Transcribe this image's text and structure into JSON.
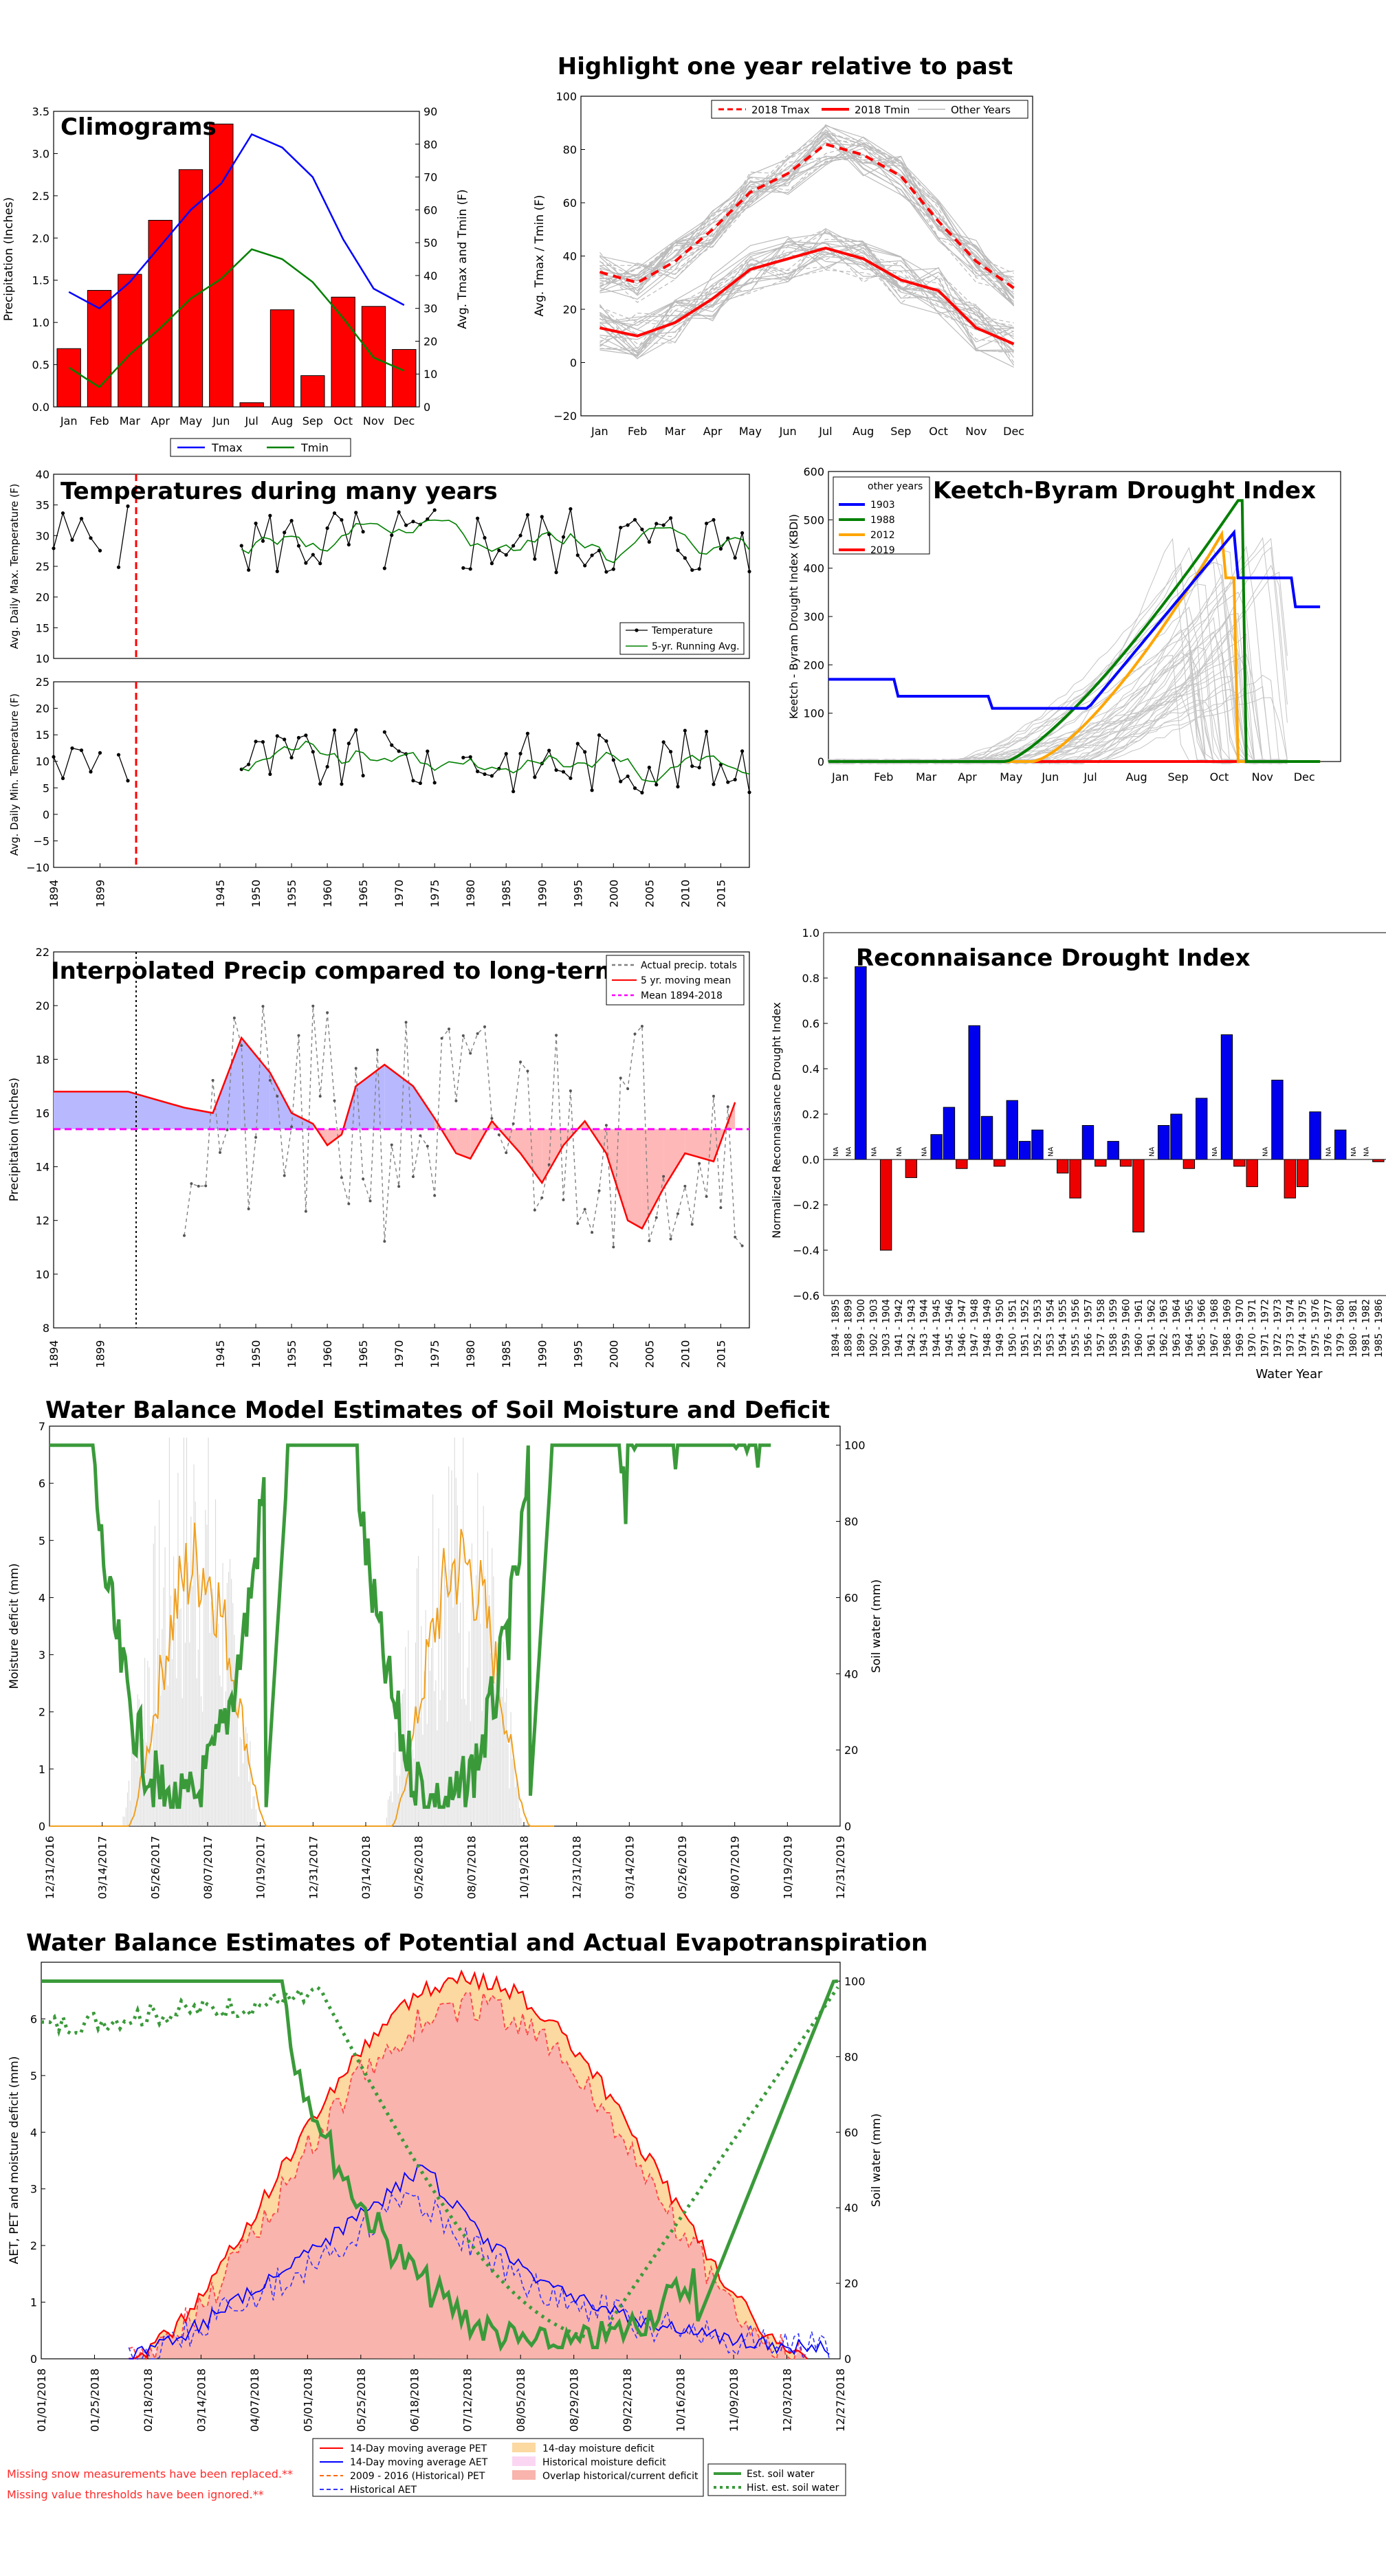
{
  "months": [
    "Jan",
    "Feb",
    "Mar",
    "Apr",
    "May",
    "Jun",
    "Jul",
    "Aug",
    "Sep",
    "Oct",
    "Nov",
    "Dec"
  ],
  "notes": [
    "Missing snow measurements have been replaced.**",
    "Missing value thresholds have been ignored.**"
  ],
  "chart_data": [
    {
      "id": "climogram",
      "type": "bar+line",
      "title": "Climograms",
      "ylabel": "Precipitation (Inches)",
      "y2label": "Avg. Tmax and Tmin (F)",
      "ylim": [
        0,
        3.5
      ],
      "y2lim": [
        0,
        90
      ],
      "yticks": [
        "0.0",
        "0.5",
        "1.0",
        "1.5",
        "2.0",
        "2.5",
        "3.0",
        "3.5"
      ],
      "y2ticks": [
        "0",
        "10",
        "20",
        "30",
        "40",
        "50",
        "60",
        "70",
        "80",
        "90"
      ],
      "precip": [
        0.69,
        1.38,
        1.57,
        2.21,
        2.81,
        3.35,
        0.05,
        1.15,
        0.37,
        1.3,
        1.19,
        0.68
      ],
      "series": [
        {
          "name": "Tmax",
          "color": "#0000ff",
          "values": [
            35,
            30,
            38,
            49,
            60,
            68,
            83,
            79,
            70,
            51,
            36,
            31
          ]
        },
        {
          "name": "Tmin",
          "color": "#008000",
          "values": [
            12,
            6,
            16,
            24,
            33,
            39,
            48,
            45,
            38,
            27,
            15,
            11
          ]
        }
      ],
      "bar_color": "#ff0000",
      "legend": [
        "Tmax",
        "Tmin"
      ]
    },
    {
      "id": "highlight",
      "type": "line",
      "title": "Highlight one year relative to past",
      "ylabel": "Avg. Tmax / Tmin (F)",
      "ylim": [
        -20,
        100
      ],
      "yticks": [
        "−20",
        "0",
        "20",
        "40",
        "60",
        "80",
        "100"
      ],
      "series": [
        {
          "name": "2018 Tmax",
          "color": "#ff0000",
          "style": "dashed",
          "values": [
            34,
            30,
            38,
            50,
            64,
            71,
            82,
            78,
            70,
            53,
            38,
            28
          ]
        },
        {
          "name": "2018 Tmin",
          "color": "#ff0000",
          "style": "solid",
          "values": [
            13,
            10,
            15,
            24,
            35,
            39,
            43,
            39,
            31,
            27,
            13,
            7
          ]
        },
        {
          "name": "Other Years",
          "color": "#b9b9b9",
          "style": "thin"
        }
      ]
    },
    {
      "id": "tmax-years",
      "type": "line",
      "title": "Temperatures during many years",
      "ylabel": "Avg. Daily Max. Temperature (F)",
      "ylim": [
        10,
        40
      ],
      "yticks": [
        "10",
        "15",
        "20",
        "25",
        "30",
        "35",
        "40"
      ],
      "x_start": 1894,
      "x_end": 2019,
      "series": [
        {
          "name": "Temperature",
          "color": "#000000"
        },
        {
          "name": "5-yr. Running Avg.",
          "color": "#008000"
        }
      ],
      "dashed_line_year": 1902
    },
    {
      "id": "tmin-years",
      "type": "line",
      "ylabel": "Avg. Daily Min. Temperature (F)",
      "ylim": [
        -10,
        25
      ],
      "yticks": [
        "−10",
        "−5",
        "0",
        "5",
        "10",
        "15",
        "20",
        "25"
      ],
      "xticks": [
        "1894",
        "1899",
        "1945",
        "1950",
        "1955",
        "1960",
        "1965",
        "1970",
        "1975",
        "1980",
        "1985",
        "1990",
        "1995",
        "2000",
        "2005",
        "2010",
        "2015"
      ],
      "dashed_line_year": 1902
    },
    {
      "id": "kbdi",
      "type": "line",
      "title": "Keetch-Byram Drought Index",
      "ylabel": "Keetch - Byram Drought Index (KBDI)",
      "ylim": [
        0,
        600
      ],
      "yticks": [
        "0",
        "100",
        "200",
        "300",
        "400",
        "500",
        "600"
      ],
      "legend_title": "other years",
      "series": [
        {
          "name": "1903",
          "color": "#0000ff"
        },
        {
          "name": "1988",
          "color": "#008000"
        },
        {
          "name": "2012",
          "color": "#ffa500"
        },
        {
          "name": "2019",
          "color": "#ff0000"
        }
      ]
    },
    {
      "id": "precip-interp",
      "type": "line",
      "title": "Interpolated Precip compared to long-term",
      "ylabel": "Precipitation (Inches)",
      "ylim": [
        8,
        22
      ],
      "yticks": [
        "8",
        "10",
        "12",
        "14",
        "16",
        "18",
        "20",
        "22"
      ],
      "xticks": [
        "1894",
        "1899",
        "1945",
        "1950",
        "1955",
        "1960",
        "1965",
        "1970",
        "1975",
        "1980",
        "1985",
        "1990",
        "1995",
        "2000",
        "2005",
        "2010",
        "2015"
      ],
      "mean": 15.4,
      "series": [
        {
          "name": "Actual precip. totals",
          "color": "#808080"
        },
        {
          "name": "5 yr. moving mean",
          "color": "#ff0000"
        },
        {
          "name": "Mean 1894-2018",
          "color": "#ff00ff"
        }
      ]
    },
    {
      "id": "rdi",
      "type": "bar",
      "title": "Reconnaisance Drought Index",
      "ylabel": "Normalized Reconnaissance Drought Index",
      "xlabel": "Water Year",
      "ylim": [
        -0.6,
        1.0
      ],
      "yticks": [
        "−0.6",
        "−0.4",
        "−0.2",
        "0.0",
        "0.2",
        "0.4",
        "0.6",
        "0.8",
        "1.0"
      ],
      "na_label": "NA",
      "categories": [
        "1894 - 1895",
        "1898 - 1899",
        "1899 - 1900",
        "1902 - 1903",
        "1903 - 1904",
        "1941 - 1942",
        "1942 - 1943",
        "1943 - 1944",
        "1944 - 1945",
        "1945 - 1946",
        "1946 - 1947",
        "1947 - 1948",
        "1948 - 1949",
        "1949 - 1950",
        "1950 - 1951",
        "1951 - 1952",
        "1952 - 1953",
        "1953 - 1954",
        "1954 - 1955",
        "1955 - 1956",
        "1956 - 1957",
        "1957 - 1958",
        "1958 - 1959",
        "1959 - 1960",
        "1960 - 1961",
        "1961 - 1962",
        "1962 - 1963",
        "1963 - 1964",
        "1964 - 1965",
        "1965 - 1966",
        "1967 - 1968",
        "1968 - 1969",
        "1969 - 1970",
        "1970 - 1971",
        "1971 - 1972",
        "1972 - 1973",
        "1973 - 1974",
        "1974 - 1975",
        "1975 - 1976",
        "1976 - 1977",
        "1979 - 1980",
        "1980 - 1981",
        "1981 - 1982",
        "1985 - 1986"
      ],
      "values": [
        null,
        null,
        0.85,
        null,
        -0.4,
        null,
        -0.08,
        null,
        0.11,
        0.23,
        -0.04,
        0.59,
        0.19,
        -0.03,
        0.26,
        0.08,
        0.13,
        null,
        -0.06,
        -0.17,
        0.15,
        -0.03,
        0.08,
        -0.03,
        -0.32,
        null,
        0.15,
        0.2,
        -0.04,
        0.27,
        null,
        0.55,
        -0.03,
        -0.12,
        null,
        0.35,
        -0.17,
        -0.12,
        0.21,
        null,
        0.13,
        null,
        null,
        -0.01
      ]
    },
    {
      "id": "wb-soil",
      "type": "line",
      "title": "Water Balance Model Estimates of Soil Moisture and Deficit",
      "ylabel": "Moisture deficit (mm)",
      "y2label": "Soil water (mm)",
      "ylim": [
        0,
        7
      ],
      "y2lim": [
        0,
        105
      ],
      "yticks": [
        "0",
        "1",
        "2",
        "3",
        "4",
        "5",
        "6",
        "7"
      ],
      "y2ticks": [
        "0",
        "20",
        "40",
        "60",
        "80",
        "100"
      ],
      "xticks": [
        "12/31/2016",
        "03/14/2017",
        "05/26/2017",
        "08/07/2017",
        "10/19/2017",
        "12/31/2017",
        "03/14/2018",
        "05/26/2018",
        "08/07/2018",
        "10/19/2018",
        "12/31/2018",
        "03/14/2019",
        "05/26/2019",
        "08/07/2019",
        "10/19/2019",
        "12/31/2019"
      ]
    },
    {
      "id": "wb-pet",
      "type": "area+line",
      "title": "Water Balance Estimates of Potential and Actual Evapotranspiration",
      "ylabel": "AET, PET and moisture deficit (mm)",
      "y2label": "Soil water (mm)",
      "ylim": [
        0,
        7
      ],
      "y2lim": [
        0,
        105
      ],
      "yticks": [
        "0",
        "1",
        "2",
        "3",
        "4",
        "5",
        "6"
      ],
      "y2ticks": [
        "0",
        "20",
        "40",
        "60",
        "80",
        "100"
      ],
      "xticks": [
        "01/01/2018",
        "01/25/2018",
        "02/18/2018",
        "03/14/2018",
        "04/07/2018",
        "05/01/2018",
        "05/25/2018",
        "06/18/2018",
        "07/12/2018",
        "08/05/2018",
        "08/29/2018",
        "09/22/2018",
        "10/16/2018",
        "11/09/2018",
        "12/03/2018",
        "12/27/2018"
      ],
      "legend1": [
        {
          "name": "14-Day moving average PET",
          "color": "#ff0000",
          "kind": "line"
        },
        {
          "name": "14-Day moving average AET",
          "color": "#0000ff",
          "kind": "line"
        },
        {
          "name": "2009 - 2016 (Historical) PET",
          "color": "#ff6600",
          "kind": "dash"
        },
        {
          "name": "Historical AET",
          "color": "#3333ff",
          "kind": "dash"
        },
        {
          "name": "14-day moisture deficit",
          "color": "#fbd9a0",
          "kind": "fill"
        },
        {
          "name": "Historical moisture deficit",
          "color": "#fbd6f3",
          "kind": "fill"
        },
        {
          "name": "Overlap historical/current deficit",
          "color": "#f9b4ad",
          "kind": "fill"
        }
      ],
      "legend2": [
        {
          "name": "Est. soil water",
          "color": "#3a9a3a",
          "kind": "line"
        },
        {
          "name": "Hist. est. soil water",
          "color": "#3a9a3a",
          "kind": "dot"
        }
      ]
    }
  ]
}
